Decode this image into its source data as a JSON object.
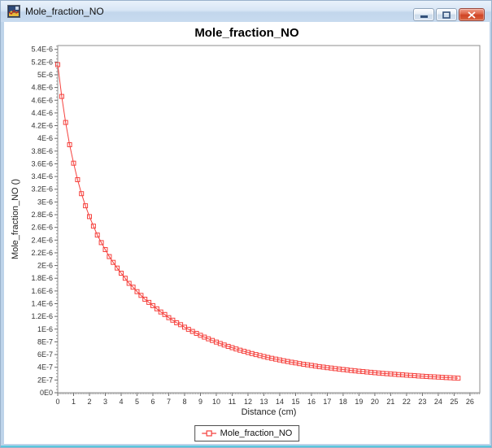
{
  "window": {
    "title": "Mole_fraction_NO",
    "icon_name": "chart-thumbnail-icon",
    "controls": [
      {
        "name": "minimize-button",
        "glyph": "minimize-dash"
      },
      {
        "name": "maximize-button",
        "glyph": "maximize-square"
      },
      {
        "name": "close-button",
        "glyph": "close-x"
      }
    ]
  },
  "chart_data": {
    "type": "line",
    "title": "Mole_fraction_NO",
    "xlabel": "Distance (cm)",
    "ylabel": "Mole_fraction_NO ()",
    "grid": false,
    "legend_position": "bottom",
    "legend_label": "Mole_fraction_NO",
    "xlim": [
      0,
      26.62
    ],
    "ylim": [
      0,
      5.46e-06
    ],
    "x_tick_labels": [
      "0",
      "1",
      "2",
      "3",
      "4",
      "5",
      "6",
      "7",
      "8",
      "9",
      "10",
      "11",
      "12",
      "13",
      "14",
      "15",
      "16",
      "17",
      "18",
      "19",
      "20",
      "21",
      "22",
      "23",
      "24",
      "25",
      "26"
    ],
    "y_tick_labels": [
      "0E0",
      "2E-7",
      "4E-7",
      "6E-7",
      "8E-7",
      "1E-6",
      "1.2E-6",
      "1.4E-6",
      "1.6E-6",
      "1.8E-6",
      "2E-6",
      "2.2E-6",
      "2.4E-6",
      "2.6E-6",
      "2.8E-6",
      "3E-6",
      "3.2E-6",
      "3.4E-6",
      "3.6E-6",
      "3.8E-6",
      "4E-6",
      "4.2E-6",
      "4.4E-6",
      "4.6E-6",
      "4.8E-6",
      "5E-6",
      "5.2E-6",
      "5.4E-6"
    ],
    "y_tick_step": 2e-07,
    "series": [
      {
        "name": "Mole_fraction_NO",
        "color": "#f5413d",
        "marker": "open-square",
        "points": [
          [
            0,
            5.16e-06
          ],
          [
            0.25,
            4.66e-06
          ],
          [
            0.5,
            4.25e-06
          ],
          [
            0.75,
            3.9e-06
          ],
          [
            1,
            3.61e-06
          ],
          [
            1.25,
            3.35e-06
          ],
          [
            1.5,
            3.13e-06
          ],
          [
            1.75,
            2.94e-06
          ],
          [
            2,
            2.77e-06
          ],
          [
            2.25,
            2.62e-06
          ],
          [
            2.5,
            2.48e-06
          ],
          [
            2.75,
            2.36e-06
          ],
          [
            3,
            2.25e-06
          ],
          [
            3.25,
            2.14e-06
          ],
          [
            3.5,
            2.05e-06
          ],
          [
            3.75,
            1.96e-06
          ],
          [
            4,
            1.88e-06
          ],
          [
            4.25,
            1.8e-06
          ],
          [
            4.5,
            1.72e-06
          ],
          [
            4.75,
            1.66e-06
          ],
          [
            5,
            1.59e-06
          ],
          [
            5.25,
            1.53e-06
          ],
          [
            5.5,
            1.47e-06
          ],
          [
            5.75,
            1.42e-06
          ],
          [
            6,
            1.37e-06
          ],
          [
            6.25,
            1.32e-06
          ],
          [
            6.5,
            1.27e-06
          ],
          [
            6.75,
            1.23e-06
          ],
          [
            7,
            1.18e-06
          ],
          [
            7.25,
            1.14e-06
          ],
          [
            7.5,
            1.1e-06
          ],
          [
            7.75,
            1.07e-06
          ],
          [
            8,
            1.03e-06
          ],
          [
            8.25,
            9.96e-07
          ],
          [
            8.5,
            9.64e-07
          ],
          [
            8.75,
            9.33e-07
          ],
          [
            9,
            9.03e-07
          ],
          [
            9.25,
            8.75e-07
          ],
          [
            9.5,
            8.48e-07
          ],
          [
            9.75,
            8.22e-07
          ],
          [
            10,
            7.97e-07
          ],
          [
            10.25,
            7.74e-07
          ],
          [
            10.5,
            7.51e-07
          ],
          [
            10.75,
            7.29e-07
          ],
          [
            11,
            7.08e-07
          ],
          [
            11.25,
            6.88e-07
          ],
          [
            11.5,
            6.69e-07
          ],
          [
            11.75,
            6.51e-07
          ],
          [
            12,
            6.33e-07
          ],
          [
            12.25,
            6.16e-07
          ],
          [
            12.5,
            6e-07
          ],
          [
            12.75,
            5.84e-07
          ],
          [
            13,
            5.69e-07
          ],
          [
            13.25,
            5.55e-07
          ],
          [
            13.5,
            5.41e-07
          ],
          [
            13.75,
            5.28e-07
          ],
          [
            14,
            5.15e-07
          ],
          [
            14.25,
            5.03e-07
          ],
          [
            14.5,
            4.91e-07
          ],
          [
            14.75,
            4.8e-07
          ],
          [
            15,
            4.69e-07
          ],
          [
            15.25,
            4.58e-07
          ],
          [
            15.5,
            4.48e-07
          ],
          [
            15.75,
            4.38e-07
          ],
          [
            16,
            4.29e-07
          ],
          [
            16.25,
            4.2e-07
          ],
          [
            16.5,
            4.11e-07
          ],
          [
            16.75,
            4.03e-07
          ],
          [
            17,
            3.94e-07
          ],
          [
            17.25,
            3.87e-07
          ],
          [
            17.5,
            3.79e-07
          ],
          [
            17.75,
            3.72e-07
          ],
          [
            18,
            3.64e-07
          ],
          [
            18.25,
            3.58e-07
          ],
          [
            18.5,
            3.51e-07
          ],
          [
            18.75,
            3.44e-07
          ],
          [
            19,
            3.38e-07
          ],
          [
            19.25,
            3.32e-07
          ],
          [
            19.5,
            3.26e-07
          ],
          [
            19.75,
            3.21e-07
          ],
          [
            20,
            3.15e-07
          ],
          [
            20.25,
            3.1e-07
          ],
          [
            20.5,
            3.04e-07
          ],
          [
            20.75,
            2.99e-07
          ],
          [
            21,
            2.95e-07
          ],
          [
            21.25,
            2.9e-07
          ],
          [
            21.5,
            2.85e-07
          ],
          [
            21.75,
            2.81e-07
          ],
          [
            22,
            2.76e-07
          ],
          [
            22.25,
            2.72e-07
          ],
          [
            22.5,
            2.68e-07
          ],
          [
            22.75,
            2.64e-07
          ],
          [
            23,
            2.6e-07
          ],
          [
            23.25,
            2.56e-07
          ],
          [
            23.5,
            2.52e-07
          ],
          [
            23.75,
            2.49e-07
          ],
          [
            24,
            2.45e-07
          ],
          [
            24.25,
            2.42e-07
          ],
          [
            24.5,
            2.38e-07
          ],
          [
            24.75,
            2.35e-07
          ],
          [
            25,
            2.32e-07
          ],
          [
            25.25,
            2.29e-07
          ]
        ]
      }
    ]
  }
}
